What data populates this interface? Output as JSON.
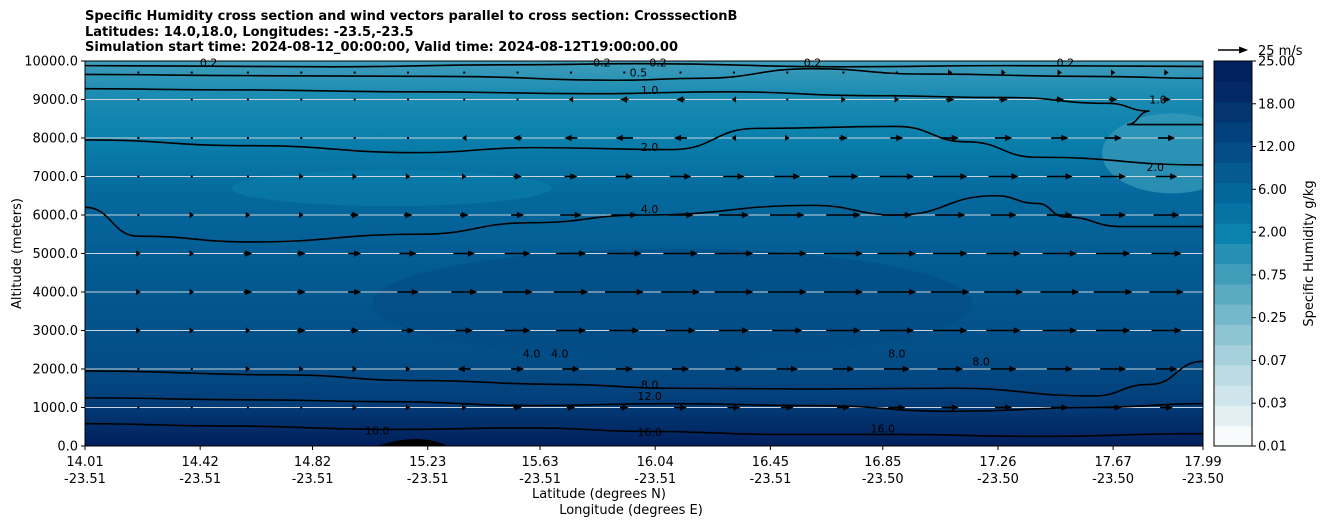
{
  "title_lines": [
    "Specific Humidity cross section and wind vectors parallel to cross section: CrosssectionB",
    "Latitudes: 14.0,18.0, Longitudes: -23.5,-23.5",
    "Simulation start time: 2024-08-12_00:00:00, Valid time: 2024-08-12T19:00:00.00"
  ],
  "chart_data": {
    "type": "heatmap",
    "description_free": true,
    "ylabel": "Altitude (meters)",
    "xlabel_lines": [
      "Latitude (degrees N)",
      "Longitude (degrees E)"
    ],
    "ylim": [
      0,
      10000
    ],
    "yticks": [
      "0.0",
      "1000.0",
      "2000.0",
      "3000.0",
      "4000.0",
      "5000.0",
      "6000.0",
      "7000.0",
      "8000.0",
      "9000.0",
      "10000.0"
    ],
    "ytick_values": [
      0,
      1000,
      2000,
      3000,
      4000,
      5000,
      6000,
      7000,
      8000,
      9000,
      10000
    ],
    "xticks": [
      {
        "lat": "14.01",
        "lon": "-23.51"
      },
      {
        "lat": "14.42",
        "lon": "-23.51"
      },
      {
        "lat": "14.82",
        "lon": "-23.51"
      },
      {
        "lat": "15.23",
        "lon": "-23.51"
      },
      {
        "lat": "15.63",
        "lon": "-23.51"
      },
      {
        "lat": "16.04",
        "lon": "-23.51"
      },
      {
        "lat": "16.45",
        "lon": "-23.51"
      },
      {
        "lat": "16.85",
        "lon": "-23.50"
      },
      {
        "lat": "17.26",
        "lon": "-23.50"
      },
      {
        "lat": "17.67",
        "lon": "-23.50"
      },
      {
        "lat": "17.99",
        "lon": "-23.50"
      }
    ],
    "grid_horizontal": true,
    "colorbar": {
      "label": "Specific Humidity g/kg",
      "ticks": [
        "0.01",
        "0.03",
        "0.07",
        "0.25",
        "0.75",
        "2.00",
        "6.00",
        "12.00",
        "18.00",
        "25.00"
      ],
      "levels": [
        0.01,
        0.02,
        0.03,
        0.05,
        0.07,
        0.1,
        0.25,
        0.5,
        0.75,
        1,
        2,
        4,
        6,
        8,
        12,
        16,
        18,
        20,
        25
      ],
      "colors": [
        "#f7fbfc",
        "#e2eff3",
        "#cfe5ec",
        "#bcdbe5",
        "#a5d0dc",
        "#8ec5d4",
        "#74b8cb",
        "#5aabc2",
        "#3f9dba",
        "#2590b3",
        "#0a82ae",
        "#0673a5",
        "#05669b",
        "#055a90",
        "#044d86",
        "#03417c",
        "#033571",
        "#022966",
        "#01205e"
      ]
    },
    "quiver_key": {
      "label": "25 m/s",
      "speed": 25
    },
    "contour_lines": [
      {
        "level": "0.2",
        "points": [
          [
            14.01,
            9880
          ],
          [
            14.9,
            9850
          ],
          [
            15.5,
            9900
          ],
          [
            16.0,
            9930
          ],
          [
            16.7,
            9850
          ],
          [
            17.3,
            9880
          ],
          [
            17.99,
            9860
          ]
        ]
      },
      {
        "level": "0.5",
        "points": [
          [
            14.01,
            9650
          ],
          [
            14.6,
            9620
          ],
          [
            15.3,
            9600
          ],
          [
            15.9,
            9500
          ],
          [
            16.2,
            9550
          ],
          [
            16.6,
            9800
          ],
          [
            17.0,
            9660
          ],
          [
            17.6,
            9600
          ],
          [
            17.99,
            9550
          ]
        ]
      },
      {
        "level": "1.0",
        "points": [
          [
            14.01,
            9280
          ],
          [
            14.5,
            9250
          ],
          [
            15.2,
            9200
          ],
          [
            15.8,
            9150
          ],
          [
            16.3,
            9200
          ],
          [
            16.8,
            9100
          ],
          [
            17.3,
            9050
          ],
          [
            17.65,
            8900
          ],
          [
            17.8,
            8700
          ],
          [
            17.72,
            8350
          ],
          [
            17.99,
            8350
          ]
        ]
      },
      {
        "level": "2.0",
        "points": [
          [
            14.01,
            7950
          ],
          [
            14.6,
            7800
          ],
          [
            15.2,
            7620
          ],
          [
            15.6,
            7750
          ],
          [
            16.1,
            7700
          ],
          [
            16.4,
            8250
          ],
          [
            16.9,
            8300
          ],
          [
            17.15,
            7900
          ],
          [
            17.4,
            7500
          ],
          [
            17.99,
            7300
          ]
        ]
      },
      {
        "level": "4.0",
        "points": [
          [
            14.01,
            6200
          ],
          [
            14.2,
            5450
          ],
          [
            14.6,
            5300
          ],
          [
            15.2,
            5500
          ],
          [
            15.6,
            5800
          ],
          [
            16.0,
            6000
          ],
          [
            16.6,
            6250
          ],
          [
            16.9,
            6000
          ],
          [
            17.25,
            6500
          ],
          [
            17.4,
            6300
          ],
          [
            17.5,
            5950
          ],
          [
            17.7,
            5700
          ],
          [
            17.99,
            5700
          ]
        ]
      },
      {
        "level": "8.0",
        "points": [
          [
            14.01,
            1950
          ],
          [
            14.7,
            1850
          ],
          [
            15.2,
            1700
          ],
          [
            15.7,
            1600
          ],
          [
            16.1,
            1500
          ],
          [
            16.6,
            1480
          ],
          [
            17.1,
            1500
          ],
          [
            17.6,
            1300
          ],
          [
            17.8,
            1600
          ],
          [
            17.99,
            2200
          ]
        ]
      },
      {
        "level": "12.0",
        "points": [
          [
            14.01,
            1250
          ],
          [
            14.6,
            1200
          ],
          [
            15.1,
            1150
          ],
          [
            15.6,
            1050
          ],
          [
            16.1,
            1100
          ],
          [
            16.6,
            1050
          ],
          [
            17.1,
            900
          ],
          [
            17.6,
            1000
          ],
          [
            17.99,
            1100
          ]
        ]
      },
      {
        "level": "16.0",
        "points": [
          [
            14.01,
            580
          ],
          [
            14.5,
            520
          ],
          [
            15.1,
            430
          ],
          [
            15.6,
            470
          ],
          [
            16.0,
            380
          ],
          [
            16.5,
            300
          ],
          [
            16.9,
            300
          ],
          [
            17.4,
            250
          ],
          [
            17.99,
            320
          ]
        ]
      }
    ],
    "contour_labels": [
      {
        "text": "0.2",
        "x": 14.45,
        "y": 9960
      },
      {
        "text": "0.2",
        "x": 15.85,
        "y": 9960
      },
      {
        "text": "0.2",
        "x": 16.05,
        "y": 9960
      },
      {
        "text": "0.2",
        "x": 16.6,
        "y": 9960
      },
      {
        "text": "0.2",
        "x": 17.5,
        "y": 9960
      },
      {
        "text": "0.5",
        "x": 15.98,
        "y": 9700
      },
      {
        "text": "1.0",
        "x": 16.02,
        "y": 9250
      },
      {
        "text": "1.0",
        "x": 17.83,
        "y": 9000
      },
      {
        "text": "2.0",
        "x": 16.02,
        "y": 7760
      },
      {
        "text": "2.0",
        "x": 17.82,
        "y": 7250
      },
      {
        "text": "4.0",
        "x": 16.02,
        "y": 6150
      },
      {
        "text": "4.0",
        "x": 15.6,
        "y": 2400
      },
      {
        "text": "4.0",
        "x": 15.7,
        "y": 2400
      },
      {
        "text": "8.0",
        "x": 16.02,
        "y": 1600
      },
      {
        "text": "8.0",
        "x": 16.9,
        "y": 2400
      },
      {
        "text": "8.0",
        "x": 17.2,
        "y": 2200
      },
      {
        "text": "12.0",
        "x": 16.02,
        "y": 1300
      },
      {
        "text": "16.0",
        "x": 15.05,
        "y": 400
      },
      {
        "text": "16.0",
        "x": 16.02,
        "y": 360
      },
      {
        "text": "16.0",
        "x": 16.85,
        "y": 450
      }
    ],
    "wind_vectors_m_s": {
      "rows_altitude_m": [
        9700,
        9000,
        8000,
        7000,
        6000,
        5000,
        4000,
        3000,
        2000,
        1000
      ],
      "cols_lat": [
        14.2,
        14.39,
        14.59,
        14.78,
        14.97,
        15.16,
        15.36,
        15.55,
        15.74,
        15.93,
        16.13,
        16.32,
        16.51,
        16.71,
        16.9,
        17.09,
        17.28,
        17.48,
        17.67,
        17.86
      ],
      "u": [
        [
          0,
          0,
          0,
          0,
          0,
          0,
          0,
          0,
          0,
          0,
          0,
          0,
          0,
          0,
          0,
          1,
          1,
          1,
          1,
          1
        ],
        [
          0,
          0,
          0,
          0,
          0,
          0,
          0,
          0,
          -1,
          -2,
          -2,
          -1,
          0,
          1,
          1,
          2,
          2,
          2,
          2,
          2
        ],
        [
          0,
          0,
          0,
          0,
          0,
          0,
          -1,
          -2,
          -3,
          -4,
          -3,
          -1,
          1,
          2,
          3,
          4,
          4,
          4,
          4,
          4
        ],
        [
          0,
          0,
          0,
          1,
          1,
          1,
          1,
          2,
          3,
          4,
          5,
          5,
          6,
          7,
          8,
          8,
          7,
          6,
          6,
          5
        ],
        [
          0,
          1,
          1,
          1,
          2,
          2,
          2,
          3,
          5,
          6,
          6,
          7,
          8,
          8,
          7,
          7,
          6,
          6,
          6,
          6
        ],
        [
          1,
          1,
          2,
          2,
          3,
          4,
          5,
          6,
          7,
          8,
          8,
          9,
          9,
          9,
          9,
          8,
          8,
          8,
          8,
          7
        ],
        [
          1,
          1,
          2,
          2,
          3,
          5,
          6,
          7,
          8,
          9,
          9,
          9,
          9,
          9,
          9,
          9,
          9,
          9,
          9,
          8
        ],
        [
          1,
          1,
          1,
          2,
          2,
          3,
          4,
          6,
          7,
          7,
          7,
          7,
          7,
          8,
          8,
          8,
          8,
          8,
          8,
          7
        ],
        [
          0,
          0,
          1,
          1,
          1,
          1,
          -3,
          3,
          4,
          4,
          4,
          4,
          5,
          5,
          6,
          6,
          6,
          6,
          6,
          5
        ],
        [
          0,
          0,
          0,
          0,
          1,
          1,
          1,
          2,
          2,
          2,
          3,
          3,
          3,
          3,
          4,
          4,
          4,
          4,
          4,
          3
        ]
      ]
    }
  }
}
